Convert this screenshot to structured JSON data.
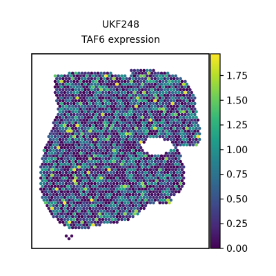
{
  "chart_data": {
    "type": "scatter",
    "plot_kind": "spatial hexagonal spot map",
    "title_line1": "UKF248",
    "title_line2": "TAF6 expression",
    "xlabel": "",
    "ylabel": "",
    "colormap": "viridis",
    "colorbar": {
      "range": [
        0.0,
        1.97
      ],
      "ticks": [
        "0.00",
        "0.25",
        "0.50",
        "0.75",
        "1.00",
        "1.25",
        "1.50",
        "1.75"
      ],
      "tick_values": [
        0.0,
        0.25,
        0.5,
        0.75,
        1.0,
        1.25,
        1.5,
        1.75
      ]
    },
    "value_range": [
      0.0,
      1.97
    ],
    "grid": false
  },
  "colors": {
    "viridis": [
      "#440154",
      "#482878",
      "#3e4989",
      "#31688e",
      "#26828e",
      "#1f9e89",
      "#35b779",
      "#6ece58",
      "#b5de2b",
      "#fde725"
    ],
    "background": "#ffffff",
    "frame": "#000000"
  }
}
